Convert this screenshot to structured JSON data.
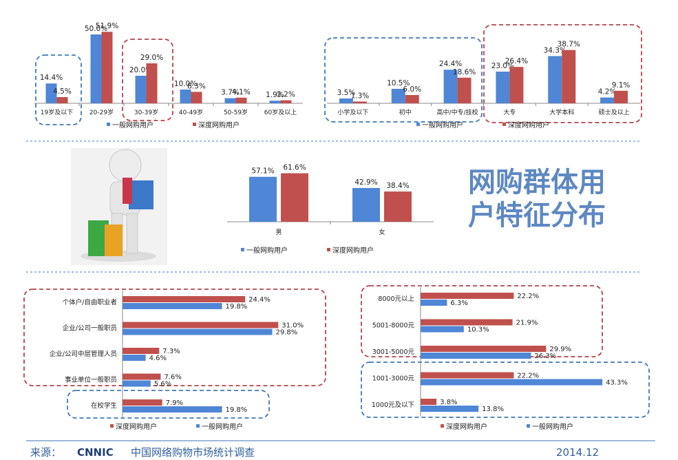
{
  "colors": {
    "general": "#4f86d6",
    "deep": "#c0504d",
    "dash_blue": "#3f78b8",
    "dash_red": "#b7404a",
    "footer_line": "#3f6fb0"
  },
  "title": [
    "网购群体用",
    "户特征分布"
  ],
  "legend": {
    "general": "一般网购用户",
    "deep": "深度网购用户"
  },
  "chart_data": [
    {
      "id": "age",
      "type": "bar",
      "categories": [
        "19岁及以下",
        "20-29岁",
        "30-39岁",
        "40-49岁",
        "50-59岁",
        "60岁及以上"
      ],
      "series": [
        {
          "name": "一般网购用户",
          "values": [
            14.4,
            50.0,
            20.0,
            10.0,
            3.7,
            1.9
          ]
        },
        {
          "name": "深度网购用户",
          "values": [
            4.5,
            51.9,
            29.0,
            8.3,
            4.1,
            2.2
          ]
        }
      ],
      "labels": [
        [
          "14.4%",
          "4.5%"
        ],
        [
          "50.0%",
          "51.9%"
        ],
        [
          "20.0%",
          "29.0%"
        ],
        [
          "10.0%",
          "8.3%"
        ],
        [
          "3.7%",
          "4.1%"
        ],
        [
          "1.9%",
          "2.2%"
        ]
      ],
      "legend_order": [
        "一般网购用户",
        "深度网购用户"
      ],
      "ylim": [
        0,
        60
      ]
    },
    {
      "id": "education",
      "type": "bar",
      "categories": [
        "小学及以下",
        "初中",
        "高中/中专/技校",
        "大专",
        "大学本科",
        "硕士及以上"
      ],
      "series": [
        {
          "name": "一般网购用户",
          "values": [
            3.5,
            10.5,
            24.4,
            23.0,
            34.3,
            4.2
          ]
        },
        {
          "name": "深度网购用户",
          "values": [
            1.3,
            6.0,
            18.6,
            26.4,
            38.7,
            9.1
          ]
        }
      ],
      "labels": [
        [
          "3.5%",
          "1.3%"
        ],
        [
          "10.5%",
          "6.0%"
        ],
        [
          "24.4%",
          "18.6%"
        ],
        [
          "23.0%",
          "26.4%"
        ],
        [
          "34.3%",
          "38.7%"
        ],
        [
          "4.2%",
          "9.1%"
        ]
      ],
      "legend_order": [
        "一般网购用户",
        "深度网购用户"
      ],
      "ylim": [
        0,
        45
      ]
    },
    {
      "id": "gender",
      "type": "bar",
      "categories": [
        "男",
        "女"
      ],
      "series": [
        {
          "name": "一般网购用户",
          "values": [
            57.1,
            42.9
          ]
        },
        {
          "name": "深度网购用户",
          "values": [
            61.6,
            38.4
          ]
        }
      ],
      "labels": [
        [
          "57.1%",
          "61.6%"
        ],
        [
          "42.9%",
          "38.4%"
        ]
      ],
      "legend_order": [
        "一般网购用户",
        "深度网购用户"
      ],
      "ylim": [
        0,
        70
      ]
    },
    {
      "id": "occupation",
      "type": "bar",
      "orientation": "horizontal",
      "categories": [
        "个体户/自由职业者",
        "企业/公司一般职员",
        "企业/公司中层管理人员",
        "事业单位一般职员",
        "在校学生"
      ],
      "series": [
        {
          "name": "深度网购用户",
          "values": [
            24.4,
            31.0,
            7.3,
            7.6,
            7.9
          ]
        },
        {
          "name": "一般网购用户",
          "values": [
            19.8,
            29.8,
            4.6,
            5.6,
            19.8
          ]
        }
      ],
      "labels": [
        [
          "24.4%",
          "19.8%"
        ],
        [
          "31.0%",
          "29.8%"
        ],
        [
          "7.3%",
          "4.6%"
        ],
        [
          "7.6%",
          "5.6%"
        ],
        [
          "7.9%",
          "19.8%"
        ]
      ],
      "legend_order": [
        "深度网购用户",
        "一般网购用户"
      ],
      "xlim": [
        0,
        35
      ]
    },
    {
      "id": "income",
      "type": "bar",
      "orientation": "horizontal",
      "categories": [
        "8000元以上",
        "5001-8000元",
        "3001-5000元",
        "1001-3000元",
        "1000元及以下"
      ],
      "series": [
        {
          "name": "深度网购用户",
          "values": [
            22.2,
            21.9,
            29.9,
            22.2,
            3.8
          ]
        },
        {
          "name": "一般网购用户",
          "values": [
            6.3,
            10.3,
            26.3,
            43.3,
            13.8
          ]
        }
      ],
      "labels": [
        [
          "22.2%",
          "6.3%"
        ],
        [
          "21.9%",
          "10.3%"
        ],
        [
          "29.9%",
          "26.3%"
        ],
        [
          "22.2%",
          "43.3%"
        ],
        [
          "3.8%",
          "13.8%"
        ]
      ],
      "legend_order": [
        "深度网购用户",
        "一般网购用户"
      ],
      "xlim": [
        0,
        50
      ]
    }
  ],
  "footer": {
    "source_label": "来源：",
    "logo": "CNNIC",
    "survey": "中国网络购物市场统计调查",
    "date": "2014.12"
  }
}
